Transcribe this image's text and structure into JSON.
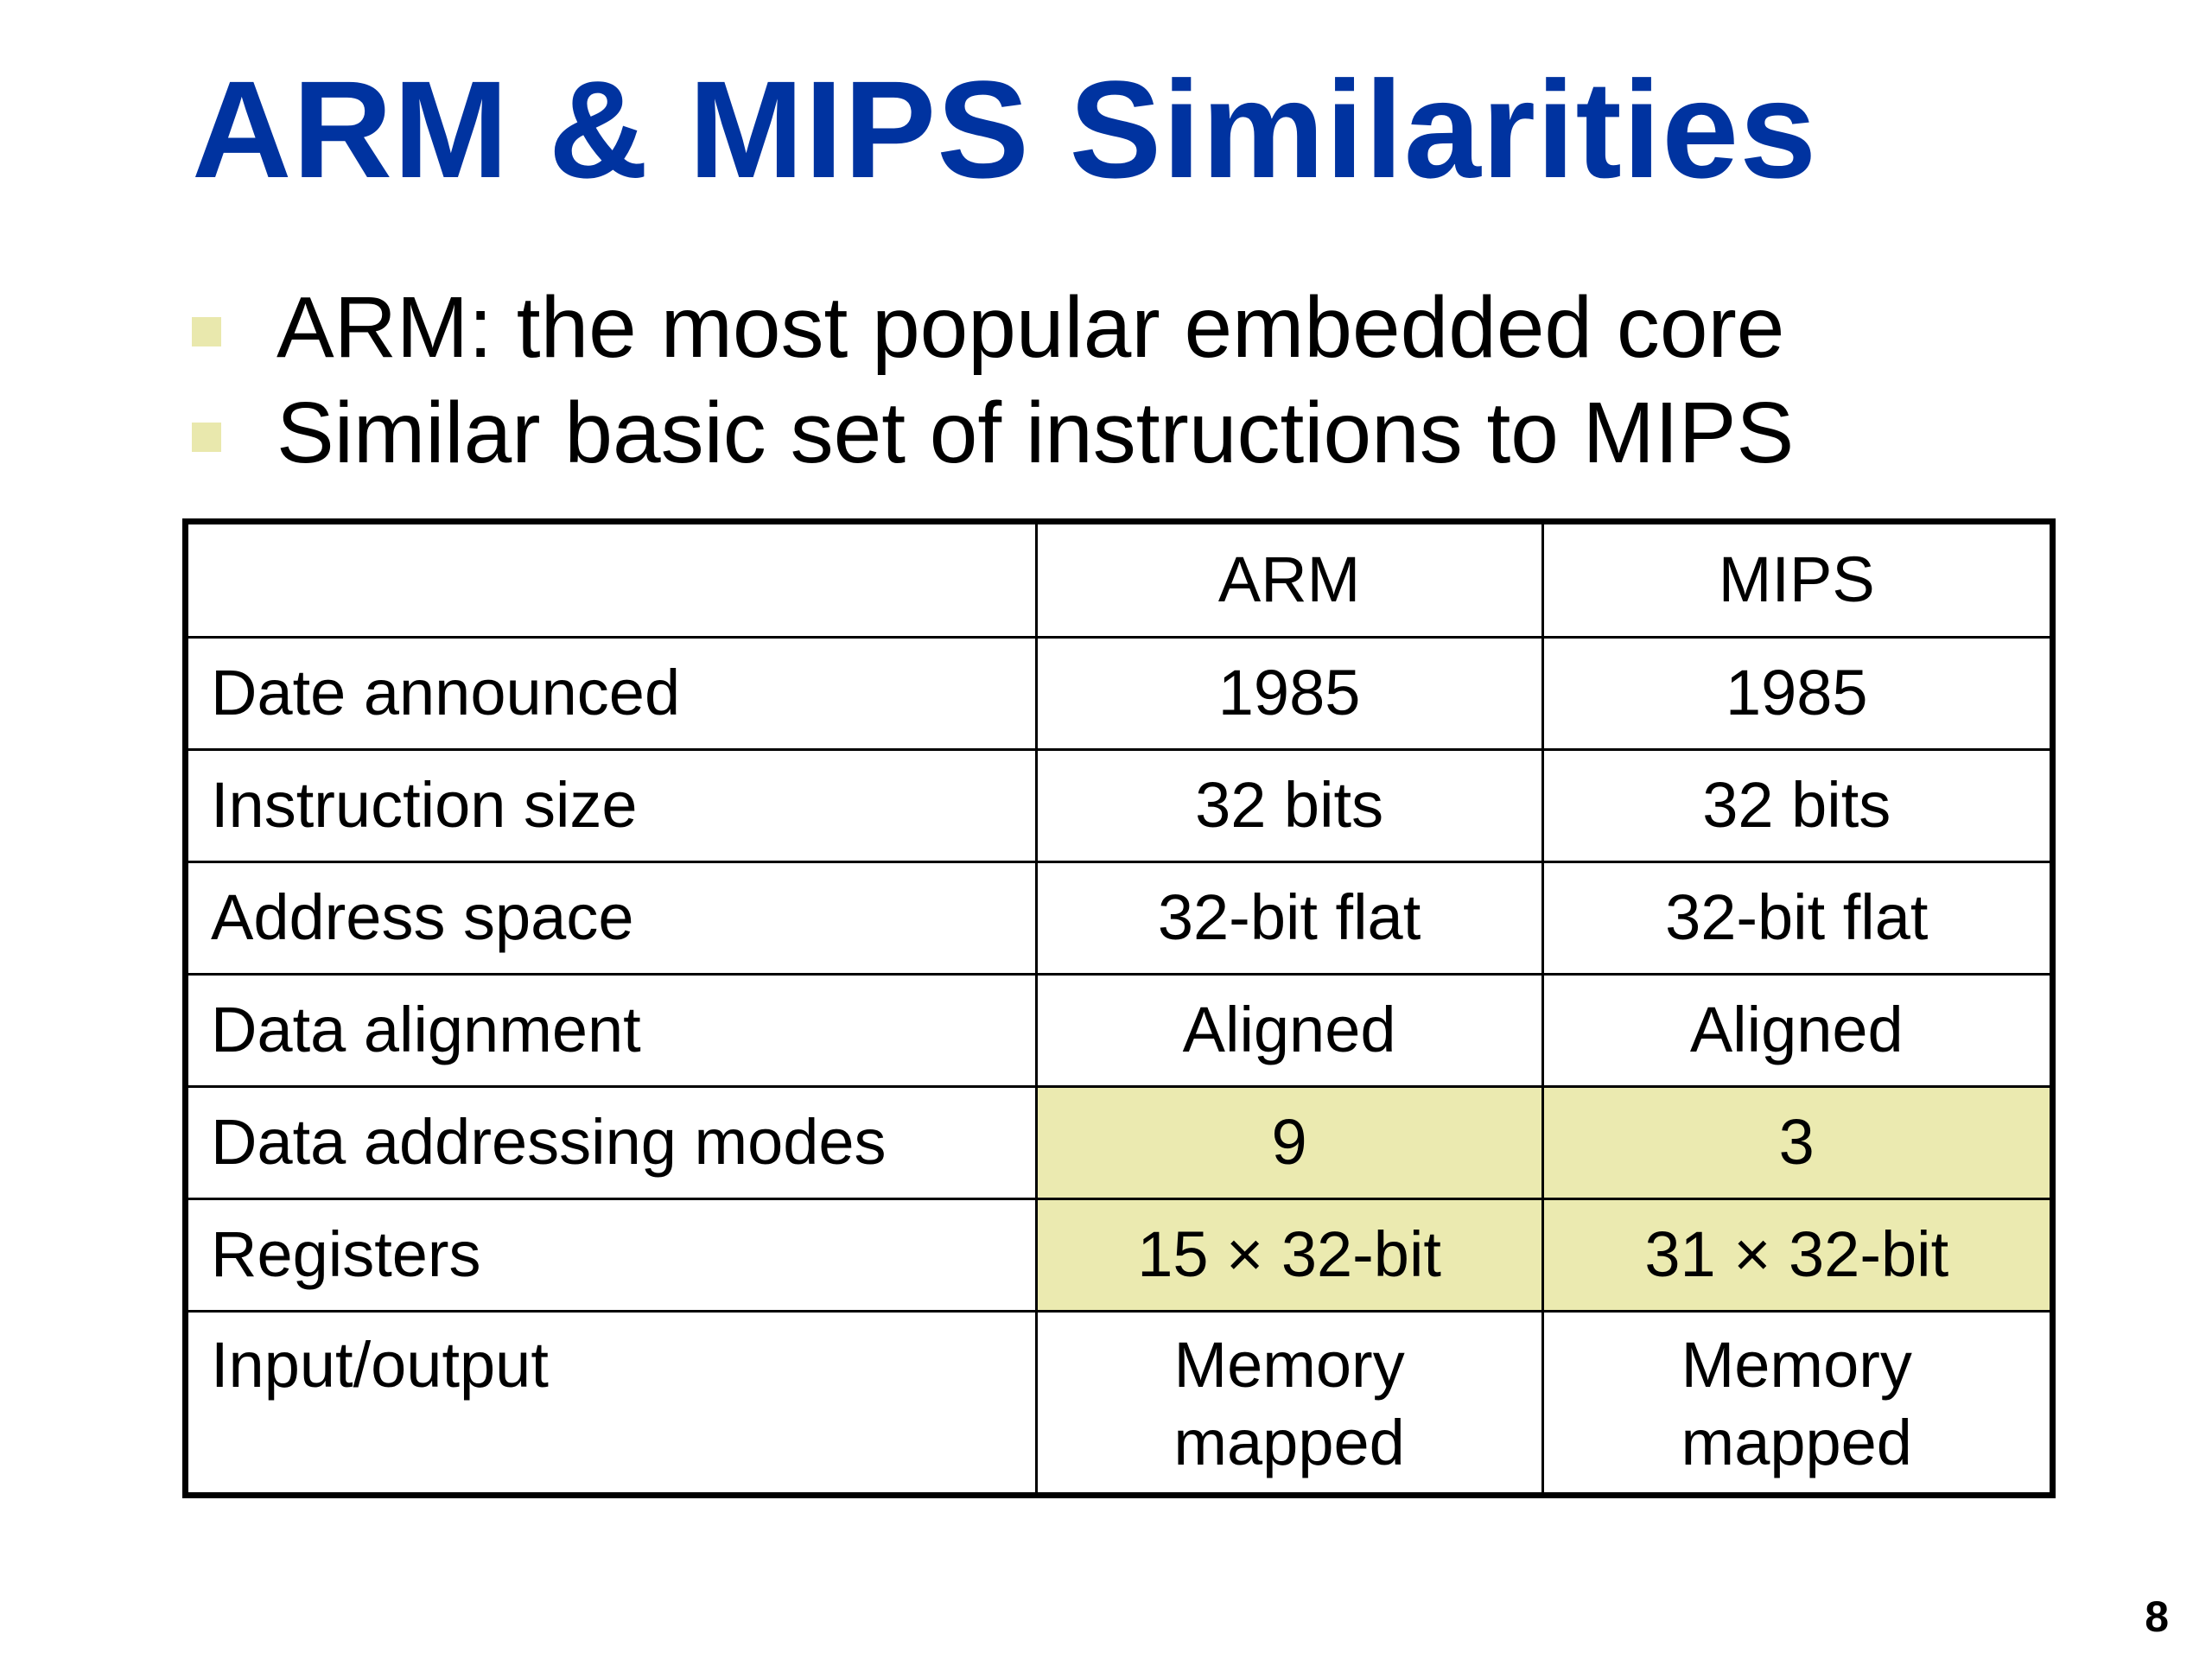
{
  "slide": {
    "title": "ARM & MIPS Similarities",
    "bullets": [
      "ARM: the most popular embedded core",
      "Similar basic set of instructions to MIPS"
    ],
    "page_number": "8"
  },
  "colors": {
    "title": "#0033a0",
    "bullet_marker": "#e9e8ad",
    "highlight": "#ebeab0"
  },
  "table": {
    "headers": [
      "",
      "ARM",
      "MIPS"
    ],
    "rows": [
      {
        "label": "Date announced",
        "arm": "1985",
        "mips": "1985",
        "highlight": false
      },
      {
        "label": "Instruction size",
        "arm": "32 bits",
        "mips": "32 bits",
        "highlight": false
      },
      {
        "label": "Address space",
        "arm": "32-bit flat",
        "mips": "32-bit flat",
        "highlight": false
      },
      {
        "label": "Data alignment",
        "arm": "Aligned",
        "mips": "Aligned",
        "highlight": false
      },
      {
        "label": "Data addressing modes",
        "arm": "9",
        "mips": "3",
        "highlight": true
      },
      {
        "label": "Registers",
        "arm": "15 × 32-bit",
        "mips": "31 × 32-bit",
        "highlight": true
      },
      {
        "label": "Input/output",
        "arm": "Memory mapped",
        "mips": "Memory mapped",
        "highlight": false
      }
    ]
  }
}
